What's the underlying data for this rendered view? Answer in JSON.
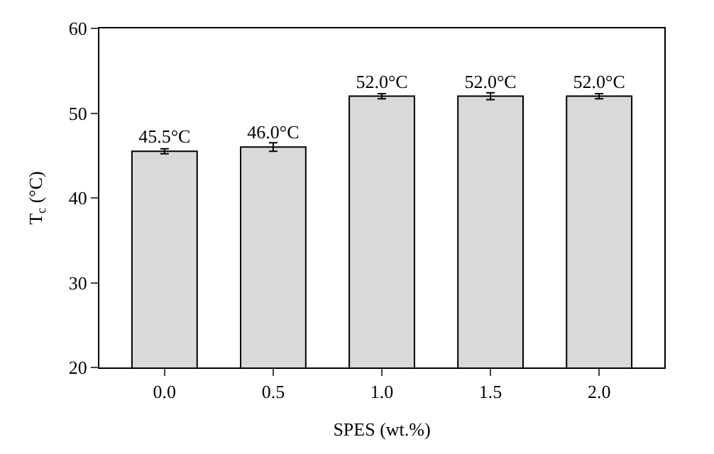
{
  "chart_data": {
    "type": "bar",
    "xlabel": "SPES (wt.%)",
    "ylabel": "T$_{c}$ (°C)",
    "categories": [
      "0.0",
      "0.5",
      "1.0",
      "1.5",
      "2.0"
    ],
    "values": [
      45.5,
      46.0,
      52.0,
      52.0,
      52.0
    ],
    "errors": [
      0.3,
      0.5,
      0.3,
      0.4,
      0.3
    ],
    "value_labels": [
      "45.5°C",
      "46.0°C",
      "52.0°C",
      "52.0°C",
      "52.0°C"
    ],
    "color": "#d9d9d9",
    "ylim": [
      20,
      60
    ],
    "yticks": [
      20,
      30,
      40,
      50,
      60
    ],
    "legend": false
  }
}
